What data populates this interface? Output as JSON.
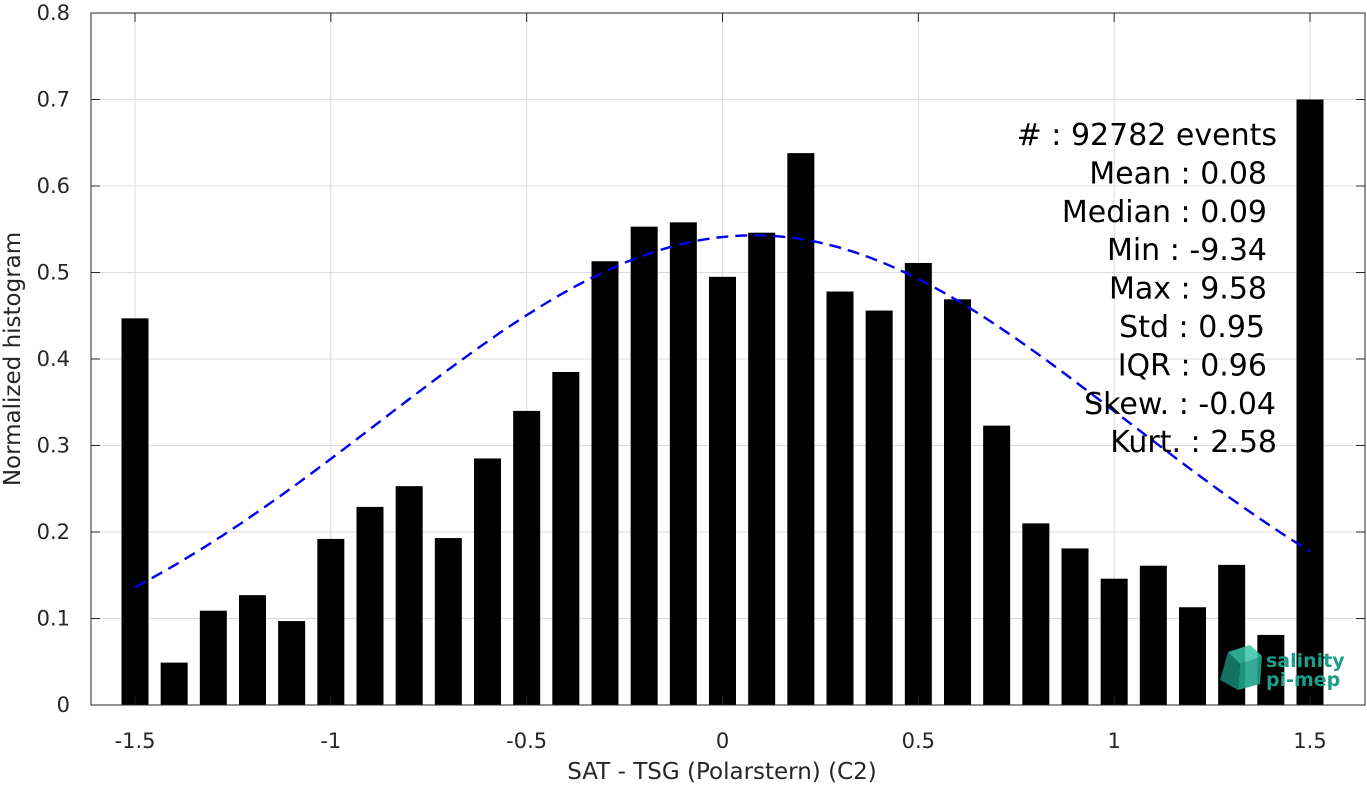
{
  "chart_data": {
    "type": "bar",
    "xlabel": "SAT - TSG (Polarstern) (C2)",
    "ylabel": "Normalized histogram",
    "xlim": [
      -1.5,
      1.5
    ],
    "ylim": [
      0,
      0.8
    ],
    "xticks": [
      -1.5,
      -1,
      -0.5,
      0,
      0.5,
      1,
      1.5
    ],
    "xtick_labels": [
      "-1.5",
      "-1",
      "-0.5",
      "0",
      "0.5",
      "1",
      "1.5"
    ],
    "yticks": [
      0,
      0.1,
      0.2,
      0.3,
      0.4,
      0.5,
      0.6,
      0.7,
      0.8
    ],
    "ytick_labels": [
      "0",
      "0.1",
      "0.2",
      "0.3",
      "0.4",
      "0.5",
      "0.6",
      "0.7",
      "0.8"
    ],
    "grid": true,
    "bar_color": "#000000",
    "bins": [
      {
        "x": -1.5,
        "y": 0.447
      },
      {
        "x": -1.4,
        "y": 0.049
      },
      {
        "x": -1.3,
        "y": 0.109
      },
      {
        "x": -1.2,
        "y": 0.127
      },
      {
        "x": -1.1,
        "y": 0.097
      },
      {
        "x": -1.0,
        "y": 0.192
      },
      {
        "x": -0.9,
        "y": 0.229
      },
      {
        "x": -0.8,
        "y": 0.253
      },
      {
        "x": -0.7,
        "y": 0.193
      },
      {
        "x": -0.6,
        "y": 0.285
      },
      {
        "x": -0.5,
        "y": 0.34
      },
      {
        "x": -0.4,
        "y": 0.385
      },
      {
        "x": -0.3,
        "y": 0.513
      },
      {
        "x": -0.2,
        "y": 0.553
      },
      {
        "x": -0.1,
        "y": 0.558
      },
      {
        "x": 0.0,
        "y": 0.495
      },
      {
        "x": 0.1,
        "y": 0.546
      },
      {
        "x": 0.2,
        "y": 0.638
      },
      {
        "x": 0.3,
        "y": 0.478
      },
      {
        "x": 0.4,
        "y": 0.456
      },
      {
        "x": 0.5,
        "y": 0.511
      },
      {
        "x": 0.6,
        "y": 0.469
      },
      {
        "x": 0.7,
        "y": 0.323
      },
      {
        "x": 0.8,
        "y": 0.21
      },
      {
        "x": 0.9,
        "y": 0.181
      },
      {
        "x": 1.0,
        "y": 0.146
      },
      {
        "x": 1.1,
        "y": 0.161
      },
      {
        "x": 1.2,
        "y": 0.113
      },
      {
        "x": 1.3,
        "y": 0.162
      },
      {
        "x": 1.4,
        "y": 0.081
      },
      {
        "x": 1.5,
        "y": 0.7
      }
    ],
    "fit_curve": {
      "style": "dashed",
      "color": "#0000ee",
      "mean": 0.08,
      "std": 0.95,
      "peak": 0.543,
      "x_range": [
        -1.5,
        1.5
      ]
    },
    "stats": [
      "#  : 92782 events",
      "Mean : 0.08",
      "Median : 0.09",
      "Min : -9.34",
      "Max : 9.58",
      "Std : 0.95",
      "IQR : 0.96",
      "Skew. : -0.04",
      "Kurt. : 2.58"
    ]
  },
  "logo": {
    "line1": "salinity",
    "line2": "pi-mep",
    "color": "#1a9e8a"
  }
}
